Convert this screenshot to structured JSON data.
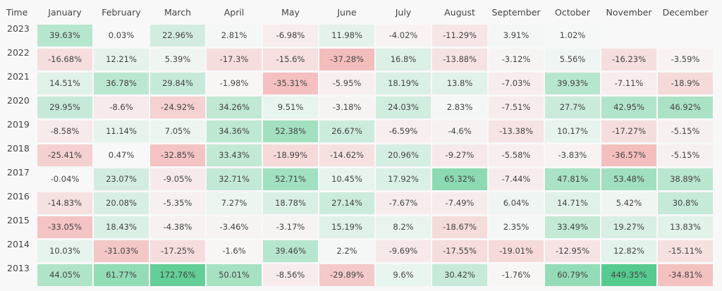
{
  "chart_data": {
    "type": "heatmap",
    "corner_label": "Time",
    "columns": [
      "January",
      "February",
      "March",
      "April",
      "May",
      "June",
      "July",
      "August",
      "September",
      "October",
      "November",
      "December"
    ],
    "rows": [
      {
        "year": "2023",
        "values": [
          "39.63%",
          "0.03%",
          "22.96%",
          "2.81%",
          "-6.98%",
          "11.98%",
          "-4.02%",
          "-11.29%",
          "3.91%",
          "1.02%",
          null,
          null
        ]
      },
      {
        "year": "2022",
        "values": [
          "-16.68%",
          "12.21%",
          "5.39%",
          "-17.3%",
          "-15.6%",
          "-37.28%",
          "16.8%",
          "-13.88%",
          "-3.12%",
          "5.56%",
          "-16.23%",
          "-3.59%"
        ]
      },
      {
        "year": "2021",
        "values": [
          "14.51%",
          "36.78%",
          "29.84%",
          "-1.98%",
          "-35.31%",
          "-5.95%",
          "18.19%",
          "13.8%",
          "-7.03%",
          "39.93%",
          "-7.11%",
          "-18.9%"
        ]
      },
      {
        "year": "2020",
        "values": [
          "29.95%",
          "-8.6%",
          "-24.92%",
          "34.26%",
          "9.51%",
          "-3.18%",
          "24.03%",
          "2.83%",
          "-7.51%",
          "27.7%",
          "42.95%",
          "46.92%"
        ]
      },
      {
        "year": "2019",
        "values": [
          "-8.58%",
          "11.14%",
          "7.05%",
          "34.36%",
          "52.38%",
          "26.67%",
          "-6.59%",
          "-4.6%",
          "-13.38%",
          "10.17%",
          "-17.27%",
          "-5.15%"
        ]
      },
      {
        "year": "2018",
        "values": [
          "-25.41%",
          "0.47%",
          "-32.85%",
          "33.43%",
          "-18.99%",
          "-14.62%",
          "20.96%",
          "-9.27%",
          "-5.58%",
          "-3.83%",
          "-36.57%",
          "-5.15%"
        ]
      },
      {
        "year": "2017",
        "values": [
          "-0.04%",
          "23.07%",
          "-9.05%",
          "32.71%",
          "52.71%",
          "10.45%",
          "17.92%",
          "65.32%",
          "-7.44%",
          "47.81%",
          "53.48%",
          "38.89%"
        ]
      },
      {
        "year": "2016",
        "values": [
          "-14.83%",
          "20.08%",
          "-5.35%",
          "7.27%",
          "18.78%",
          "27.14%",
          "-7.67%",
          "-7.49%",
          "6.04%",
          "14.71%",
          "5.42%",
          "30.8%"
        ]
      },
      {
        "year": "2015",
        "values": [
          "-33.05%",
          "18.43%",
          "-4.38%",
          "-3.46%",
          "-3.17%",
          "15.19%",
          "8.2%",
          "-18.67%",
          "2.35%",
          "33.49%",
          "19.27%",
          "13.83%"
        ]
      },
      {
        "year": "2014",
        "values": [
          "10.03%",
          "-31.03%",
          "-17.25%",
          "-1.6%",
          "39.46%",
          "2.2%",
          "-9.69%",
          "-17.55%",
          "-19.01%",
          "-12.95%",
          "12.82%",
          "-15.11%"
        ]
      },
      {
        "year": "2013",
        "values": [
          "44.05%",
          "61.77%",
          "172.76%",
          "50.01%",
          "-8.56%",
          "-29.89%",
          "9.6%",
          "30.42%",
          "-1.76%",
          "60.79%",
          "449.35%",
          "-34.81%"
        ]
      }
    ],
    "colors": {
      "positive": "#3ec47f",
      "negative": "#f08f8f",
      "neutral": "#f8f8f8"
    }
  }
}
